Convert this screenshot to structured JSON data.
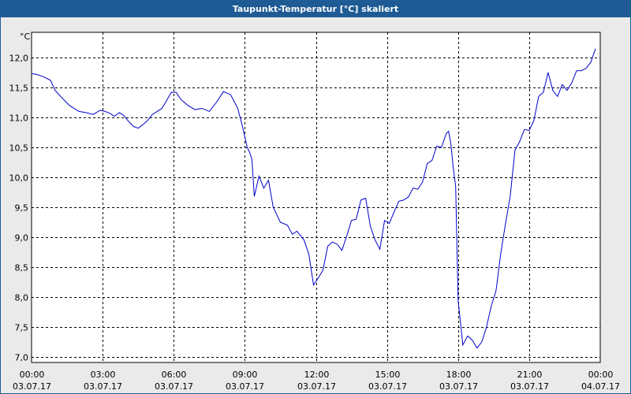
{
  "window": {
    "title": "Taupunkt-Temperatur [°C] skaliert"
  },
  "chart_data": {
    "type": "line",
    "title": "Taupunkt-Temperatur [°C] skaliert",
    "ylabel": "°C",
    "xlabel": "",
    "ylim": [
      7.0,
      12.0
    ],
    "xlim": [
      0,
      24
    ],
    "grid": true,
    "y_ticks": [
      "12,0",
      "11,5",
      "11,0",
      "10,5",
      "10,0",
      "9,5",
      "9,0",
      "8,5",
      "8,0",
      "7,5",
      "7,0"
    ],
    "x_ticks": [
      {
        "time": "00:00",
        "date": "03.07.17"
      },
      {
        "time": "03:00",
        "date": "03.07.17"
      },
      {
        "time": "06:00",
        "date": "03.07.17"
      },
      {
        "time": "09:00",
        "date": "03.07.17"
      },
      {
        "time": "12:00",
        "date": "03.07.17"
      },
      {
        "time": "15:00",
        "date": "03.07.17"
      },
      {
        "time": "18:00",
        "date": "03.07.17"
      },
      {
        "time": "21:00",
        "date": "03.07.17"
      },
      {
        "time": "00:00",
        "date": "04.07.17"
      }
    ],
    "line_color": "#0000cc",
    "series": [
      {
        "x": [
          0.0,
          0.2,
          0.5,
          0.8,
          1.0,
          1.3,
          1.6,
          2.0,
          2.3,
          2.6,
          2.9,
          3.1,
          3.3,
          3.5,
          3.7,
          3.9,
          4.1,
          4.3,
          4.5,
          4.7,
          4.9,
          5.1,
          5.3,
          5.5,
          5.7,
          5.9,
          6.1,
          6.3,
          6.6,
          6.9,
          7.2,
          7.5,
          7.8,
          8.1,
          8.4,
          8.7,
          8.9,
          9.1,
          9.2,
          9.3,
          9.4,
          9.6,
          9.8,
          10.0,
          10.2,
          10.5,
          10.8,
          11.0,
          11.2,
          11.5,
          11.7,
          11.9,
          12.1,
          12.3,
          12.5,
          12.7,
          12.9,
          13.1,
          13.3,
          13.5,
          13.7,
          13.9,
          14.1,
          14.3,
          14.5,
          14.7,
          14.9,
          15.1,
          15.3,
          15.5,
          15.7,
          15.9,
          16.1,
          16.3,
          16.5,
          16.7,
          16.9,
          17.1,
          17.3,
          17.5,
          17.6,
          17.7,
          17.8,
          17.9,
          18.0,
          18.2,
          18.4,
          18.6,
          18.8,
          19.0,
          19.2,
          19.4,
          19.6,
          19.8,
          20.0,
          20.2,
          20.4,
          20.6,
          20.8,
          21.0,
          21.2,
          21.4,
          21.6,
          21.8,
          22.0,
          22.2,
          22.4,
          22.6,
          22.8,
          23.0,
          23.2,
          23.4,
          23.6,
          23.8
        ],
        "y": [
          11.73,
          11.72,
          11.68,
          11.62,
          11.45,
          11.32,
          11.2,
          11.1,
          11.08,
          11.05,
          11.12,
          11.1,
          11.07,
          11.02,
          11.08,
          11.03,
          10.93,
          10.85,
          10.82,
          10.88,
          10.95,
          11.05,
          11.1,
          11.15,
          11.28,
          11.42,
          11.42,
          11.3,
          11.2,
          11.13,
          11.15,
          11.1,
          11.25,
          11.43,
          11.38,
          11.15,
          10.85,
          10.5,
          10.42,
          10.3,
          9.68,
          10.02,
          9.82,
          9.95,
          9.5,
          9.25,
          9.2,
          9.05,
          9.1,
          8.95,
          8.72,
          8.2,
          8.32,
          8.45,
          8.85,
          8.92,
          8.88,
          8.78,
          9.02,
          9.28,
          9.3,
          9.62,
          9.65,
          9.18,
          8.95,
          8.8,
          9.28,
          9.23,
          9.42,
          9.6,
          9.62,
          9.67,
          9.82,
          9.8,
          9.92,
          10.23,
          10.28,
          10.52,
          10.5,
          10.73,
          10.77,
          10.55,
          10.15,
          9.85,
          7.95,
          7.2,
          7.35,
          7.28,
          7.15,
          7.25,
          7.5,
          7.85,
          8.1,
          8.72,
          9.22,
          9.68,
          10.45,
          10.6,
          10.8,
          10.78,
          10.95,
          11.35,
          11.42,
          11.75,
          11.45,
          11.35,
          11.55,
          11.45,
          11.58,
          11.78,
          11.78,
          11.82,
          11.92,
          12.15
        ]
      }
    ]
  }
}
